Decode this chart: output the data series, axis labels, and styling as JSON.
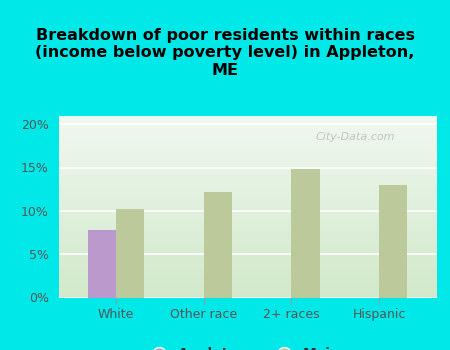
{
  "title": "Breakdown of poor residents within races\n(income below poverty level) in Appleton,\nME",
  "categories": [
    "White",
    "Other race",
    "2+ races",
    "Hispanic"
  ],
  "appleton_values": [
    7.8,
    null,
    null,
    null
  ],
  "maine_values": [
    10.2,
    12.2,
    14.8,
    13.0
  ],
  "appleton_color": "#bb99cc",
  "maine_color": "#bcc99a",
  "background_color": "#00e8e8",
  "ylim": [
    0,
    21
  ],
  "yticks": [
    0,
    5,
    10,
    15,
    20
  ],
  "ytick_labels": [
    "0%",
    "5%",
    "10%",
    "15%",
    "20%"
  ],
  "bar_width": 0.32,
  "title_fontsize": 11.5,
  "tick_fontsize": 9,
  "legend_fontsize": 10,
  "watermark": "City-Data.com"
}
